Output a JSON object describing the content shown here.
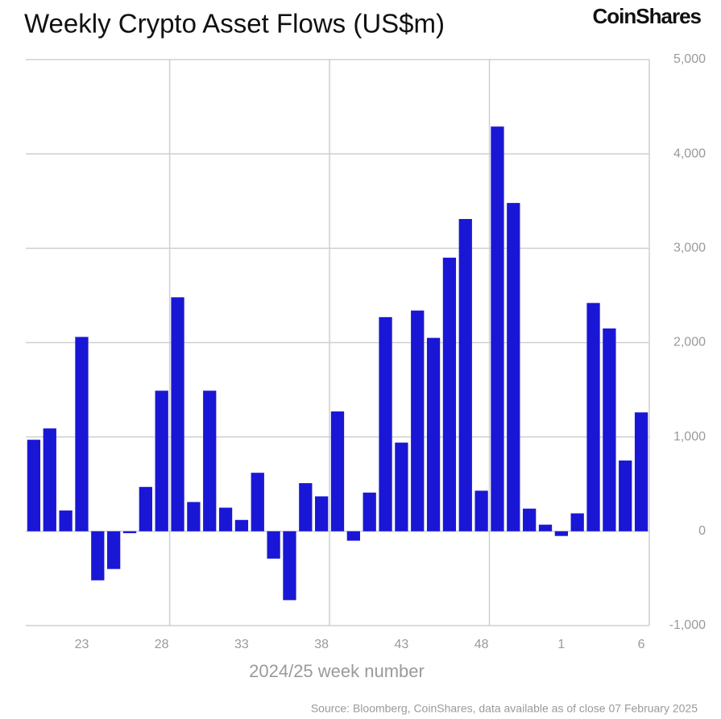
{
  "chart_data": {
    "type": "bar",
    "title": "Weekly Crypto Asset Flows (US$m)",
    "brand": "CoinShares",
    "x_label": "2024/25 week number",
    "source": "Source: Bloomberg, CoinShares, data available as of close 07 February 2025",
    "categories": [
      null,
      null,
      null,
      "23",
      null,
      null,
      null,
      null,
      "28",
      null,
      null,
      null,
      null,
      "33",
      null,
      null,
      null,
      null,
      "38",
      null,
      null,
      null,
      null,
      "43",
      null,
      null,
      null,
      null,
      "48",
      null,
      null,
      null,
      null,
      "1",
      null,
      null,
      null,
      null,
      "6"
    ],
    "values": [
      970,
      1090,
      220,
      2060,
      -520,
      -400,
      -20,
      470,
      1490,
      2480,
      310,
      1490,
      250,
      120,
      620,
      -290,
      -730,
      510,
      370,
      1270,
      -100,
      410,
      2270,
      940,
      2340,
      2050,
      2900,
      3310,
      430,
      4290,
      3480,
      240,
      70,
      -50,
      190,
      2420,
      2150,
      750,
      1260
    ],
    "color": "#1a16d6",
    "ylim": [
      -1000,
      5000
    ],
    "yticks": [
      {
        "value": -1000,
        "label": "-1,000"
      },
      0,
      {
        "value": 1000,
        "label": "1,000"
      },
      {
        "value": 2000,
        "label": "2,000"
      },
      {
        "value": 3000,
        "label": "3,000"
      },
      {
        "value": 4000,
        "label": "4,000"
      },
      {
        "value": 5000,
        "label": "5,000"
      }
    ],
    "grid": true
  }
}
